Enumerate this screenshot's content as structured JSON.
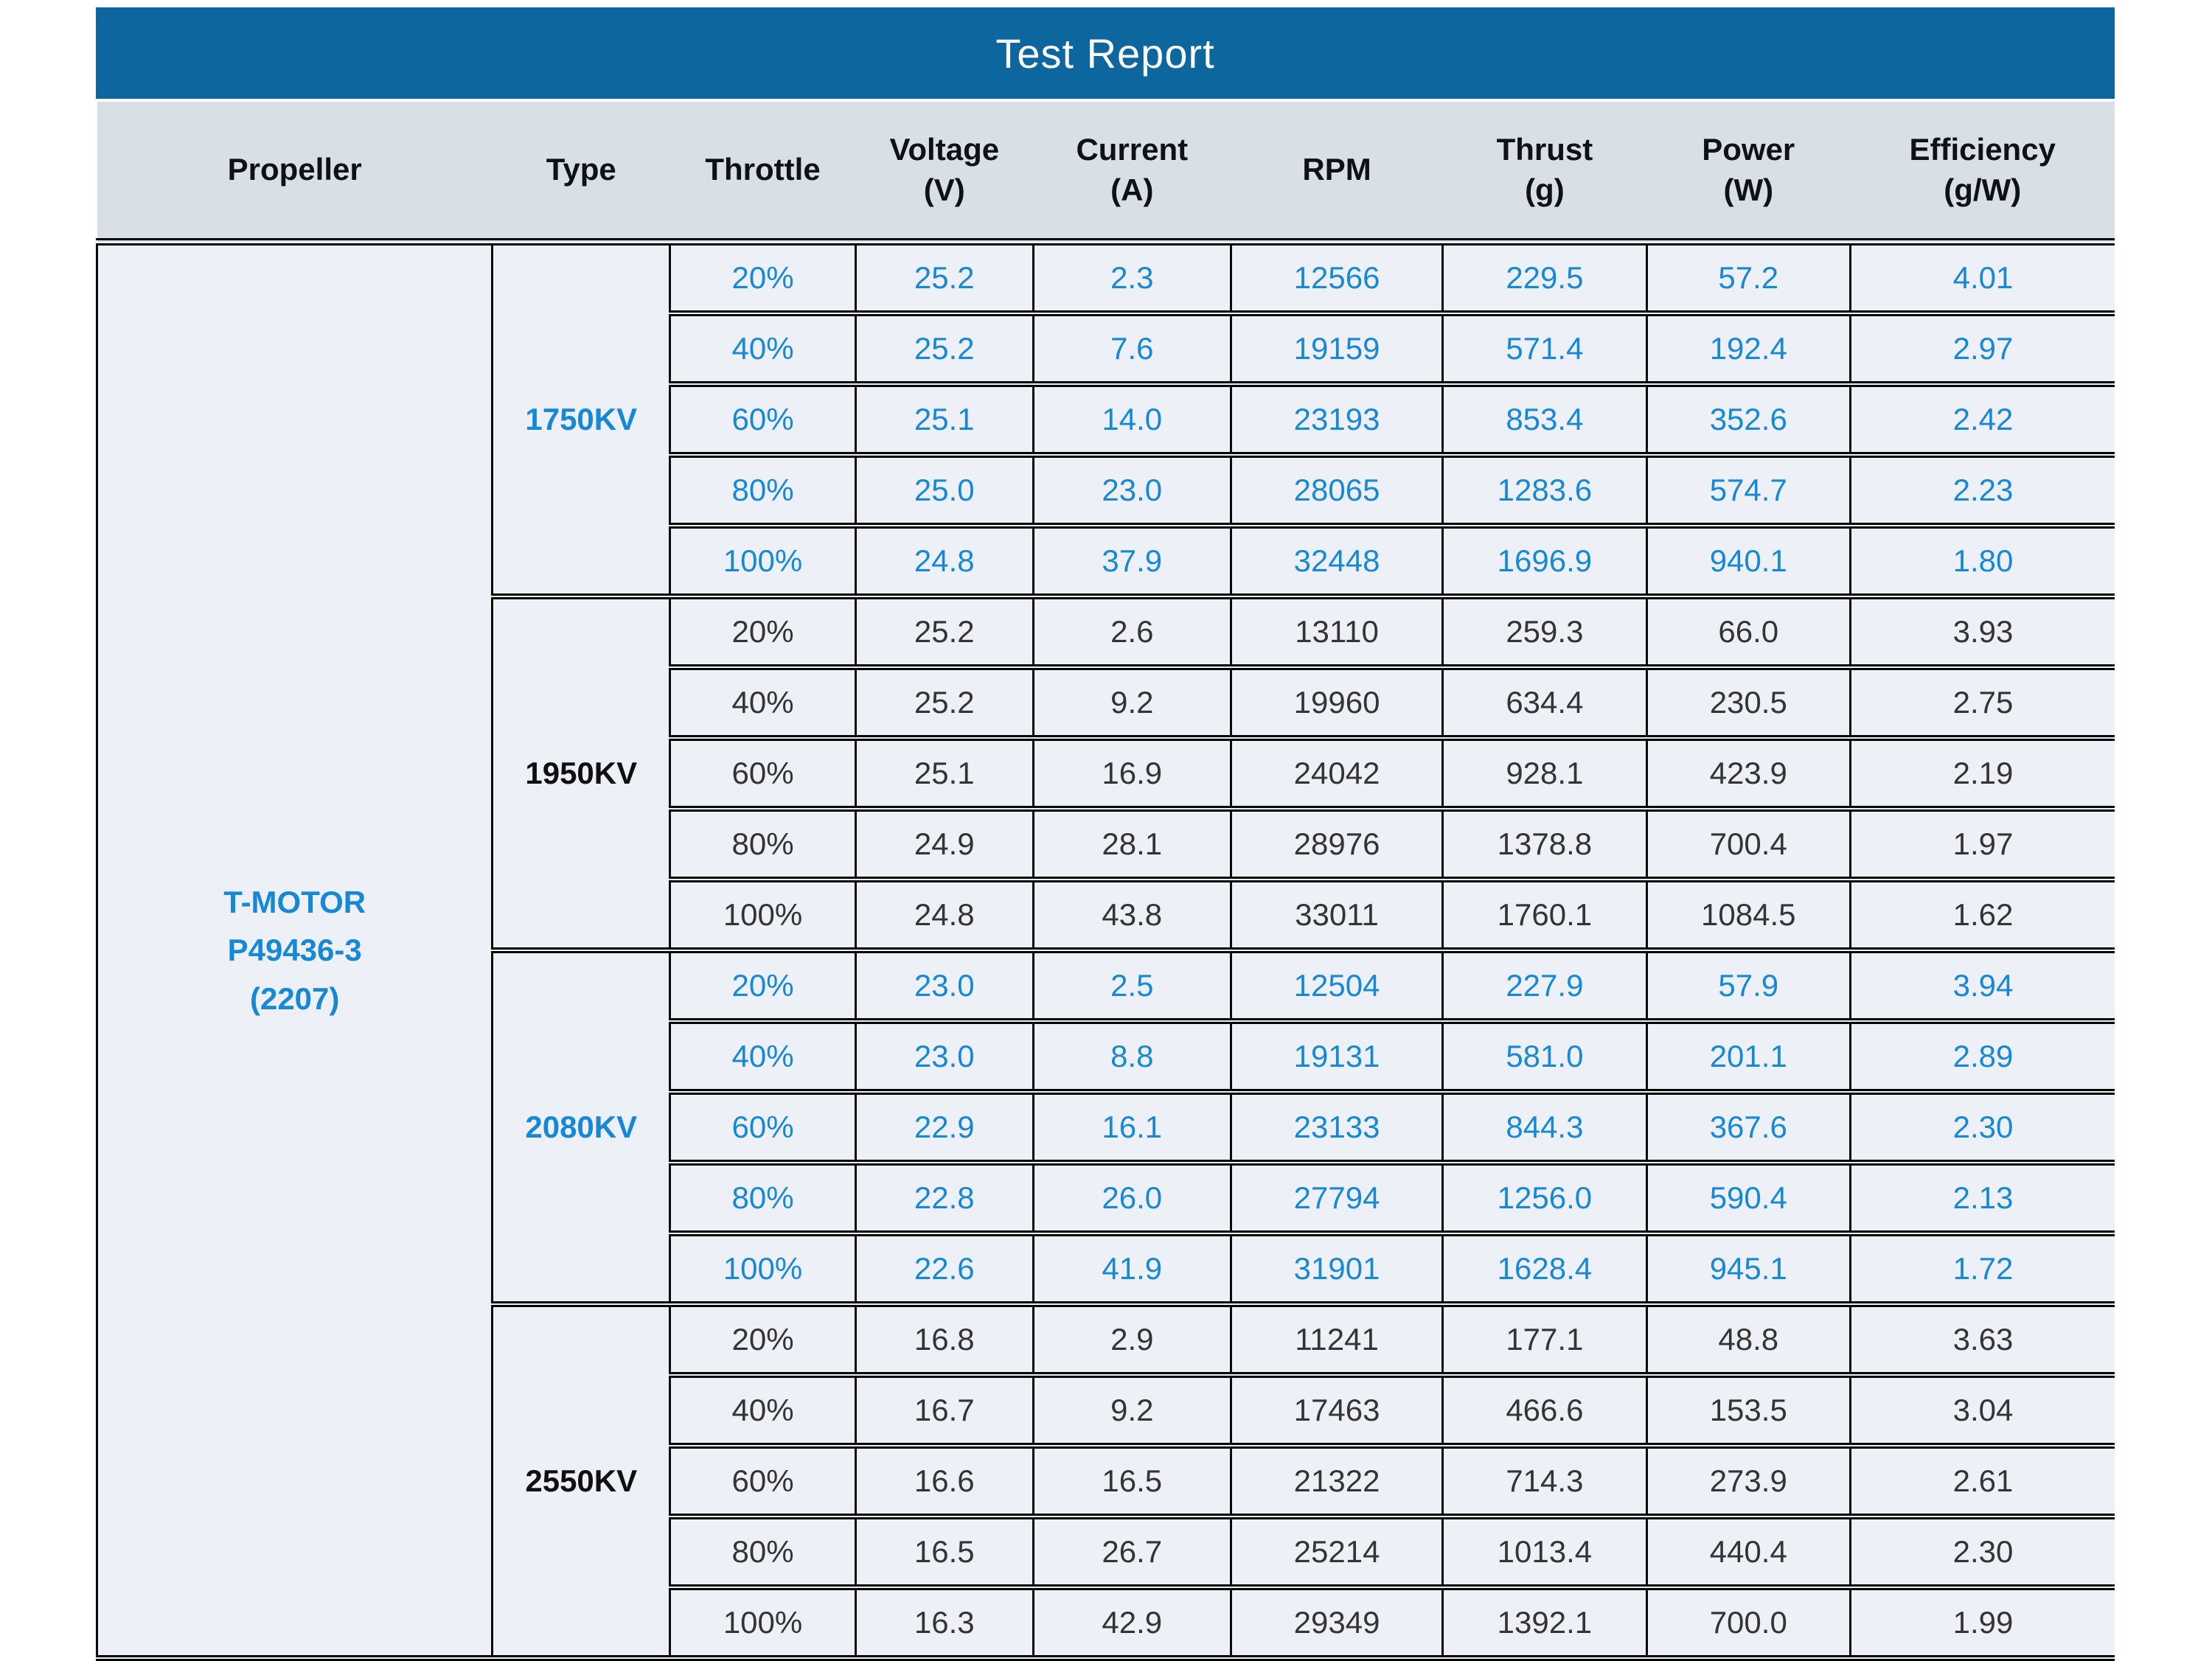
{
  "title": "Test Report",
  "colors": {
    "title_bg": "#0e669e",
    "accent_blue": "#1688d6",
    "text_black": "#343434",
    "header_bg": "#d9e0e5",
    "cell_bg": "#edf1f7"
  },
  "table": {
    "columns": [
      {
        "key": "propeller",
        "label": "Propeller",
        "unit": ""
      },
      {
        "key": "type",
        "label": "Type",
        "unit": ""
      },
      {
        "key": "throttle",
        "label": "Throttle",
        "unit": ""
      },
      {
        "key": "voltage",
        "label": "Voltage",
        "unit": "(V)"
      },
      {
        "key": "current",
        "label": "Current",
        "unit": "(A)"
      },
      {
        "key": "rpm",
        "label": "RPM",
        "unit": ""
      },
      {
        "key": "thrust",
        "label": "Thrust",
        "unit": "(g)"
      },
      {
        "key": "power",
        "label": "Power",
        "unit": "(W)"
      },
      {
        "key": "efficiency",
        "label": "Efficiency",
        "unit": "(g/W)"
      }
    ],
    "propeller_lines": [
      "T-MOTOR",
      "P49436-3",
      "(2207)"
    ],
    "groups": [
      {
        "type": "1750KV",
        "accent": "blue",
        "rows": [
          [
            "20%",
            "25.2",
            "2.3",
            "12566",
            "229.5",
            "57.2",
            "4.01"
          ],
          [
            "40%",
            "25.2",
            "7.6",
            "19159",
            "571.4",
            "192.4",
            "2.97"
          ],
          [
            "60%",
            "25.1",
            "14.0",
            "23193",
            "853.4",
            "352.6",
            "2.42"
          ],
          [
            "80%",
            "25.0",
            "23.0",
            "28065",
            "1283.6",
            "574.7",
            "2.23"
          ],
          [
            "100%",
            "24.8",
            "37.9",
            "32448",
            "1696.9",
            "940.1",
            "1.80"
          ]
        ]
      },
      {
        "type": "1950KV",
        "accent": "black",
        "rows": [
          [
            "20%",
            "25.2",
            "2.6",
            "13110",
            "259.3",
            "66.0",
            "3.93"
          ],
          [
            "40%",
            "25.2",
            "9.2",
            "19960",
            "634.4",
            "230.5",
            "2.75"
          ],
          [
            "60%",
            "25.1",
            "16.9",
            "24042",
            "928.1",
            "423.9",
            "2.19"
          ],
          [
            "80%",
            "24.9",
            "28.1",
            "28976",
            "1378.8",
            "700.4",
            "1.97"
          ],
          [
            "100%",
            "24.8",
            "43.8",
            "33011",
            "1760.1",
            "1084.5",
            "1.62"
          ]
        ]
      },
      {
        "type": "2080KV",
        "accent": "blue",
        "rows": [
          [
            "20%",
            "23.0",
            "2.5",
            "12504",
            "227.9",
            "57.9",
            "3.94"
          ],
          [
            "40%",
            "23.0",
            "8.8",
            "19131",
            "581.0",
            "201.1",
            "2.89"
          ],
          [
            "60%",
            "22.9",
            "16.1",
            "23133",
            "844.3",
            "367.6",
            "2.30"
          ],
          [
            "80%",
            "22.8",
            "26.0",
            "27794",
            "1256.0",
            "590.4",
            "2.13"
          ],
          [
            "100%",
            "22.6",
            "41.9",
            "31901",
            "1628.4",
            "945.1",
            "1.72"
          ]
        ]
      },
      {
        "type": "2550KV",
        "accent": "black",
        "rows": [
          [
            "20%",
            "16.8",
            "2.9",
            "11241",
            "177.1",
            "48.8",
            "3.63"
          ],
          [
            "40%",
            "16.7",
            "9.2",
            "17463",
            "466.6",
            "153.5",
            "3.04"
          ],
          [
            "60%",
            "16.6",
            "16.5",
            "21322",
            "714.3",
            "273.9",
            "2.61"
          ],
          [
            "80%",
            "16.5",
            "26.7",
            "25214",
            "1013.4",
            "440.4",
            "2.30"
          ],
          [
            "100%",
            "16.3",
            "42.9",
            "29349",
            "1392.1",
            "700.0",
            "1.99"
          ]
        ]
      }
    ]
  }
}
